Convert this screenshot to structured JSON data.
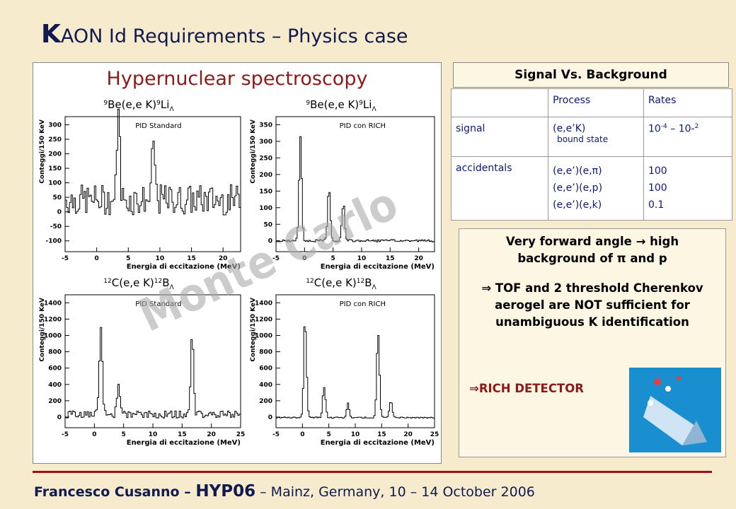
{
  "header": {
    "title_initial": "K",
    "title_rest": "AON Id Requirements – Physics case"
  },
  "left_panel": {
    "title": "Hypernuclear spectroscopy",
    "watermark": "Monte Carlo",
    "plots": [
      {
        "sup1": "9",
        "nucleus1": "Be(e,e K)",
        "sup2": "9",
        "nucleus2": "Li",
        "sub": "Λ",
        "pid": "PID Standard",
        "y_label": "Conteggi/150 KeV",
        "x_label": "Energia di eccitazione (MeV)",
        "yticks": [
          300,
          250,
          200,
          150,
          100,
          50,
          0,
          -50,
          -100
        ],
        "xticks": [
          -5,
          0,
          5,
          10,
          15,
          20
        ]
      },
      {
        "sup1": "9",
        "nucleus1": "Be(e,e K)",
        "sup2": "9",
        "nucleus2": "Li",
        "sub": "Λ",
        "pid": "PID con RICH",
        "y_label": "Conteggi/150 KeV",
        "x_label": "Energia di eccitazione (MeV)",
        "yticks": [
          350,
          300,
          250,
          200,
          150,
          100,
          50,
          0
        ],
        "xticks": [
          -5,
          0,
          5,
          10,
          15,
          20
        ]
      },
      {
        "sup1": "12",
        "nucleus1": "C(e,e K)",
        "sup2": "12",
        "nucleus2": "B",
        "sub": "Λ",
        "pid": "PID Standard",
        "y_label": "Conteggi/150 KeV",
        "x_label": "Energia di eccitazione (MeV)",
        "yticks": [
          1400,
          1200,
          1000,
          800,
          600,
          400,
          200,
          0
        ],
        "xticks": [
          -5,
          0,
          5,
          10,
          15,
          20,
          25
        ]
      },
      {
        "sup1": "12",
        "nucleus1": "C(e,e K)",
        "sup2": "12",
        "nucleus2": "B",
        "sub": "Λ",
        "pid": "PID con RICH",
        "y_label": "Conteggi/150 KeV",
        "x_label": "Energia di eccitazione (MeV)",
        "yticks": [
          1400,
          1200,
          1000,
          800,
          600,
          400,
          200,
          0
        ],
        "xticks": [
          -5,
          0,
          5,
          10,
          15,
          20,
          25
        ]
      }
    ]
  },
  "table": {
    "title": "Signal Vs. Background",
    "headers": [
      "Process",
      "Rates"
    ],
    "rows": [
      {
        "label": "signal",
        "process": [
          "(e,e’K)"
        ],
        "process_note": "bound state",
        "rate_parts": [
          "10",
          "-4",
          " – 10-",
          "2"
        ]
      },
      {
        "label": "accidentals",
        "process": [
          "(e,e’)(e,π)",
          "(e,e’)(e,p)",
          "(e,e’)(e,k)"
        ],
        "rates": [
          "100",
          "100",
          "0.1"
        ]
      }
    ]
  },
  "note": {
    "line1": "Very forward angle → high background of π and p",
    "line2": "⇒  TOF and 2 threshold Cherenkov aerogel are NOT sufficient for unambiguous K identification",
    "line3": "⇒RICH DETECTOR"
  },
  "footer": {
    "name": "Francesco Cusanno – ",
    "conf": "HYP06",
    "rest": " – Mainz, Germany, 10 – 14 October 2006"
  }
}
